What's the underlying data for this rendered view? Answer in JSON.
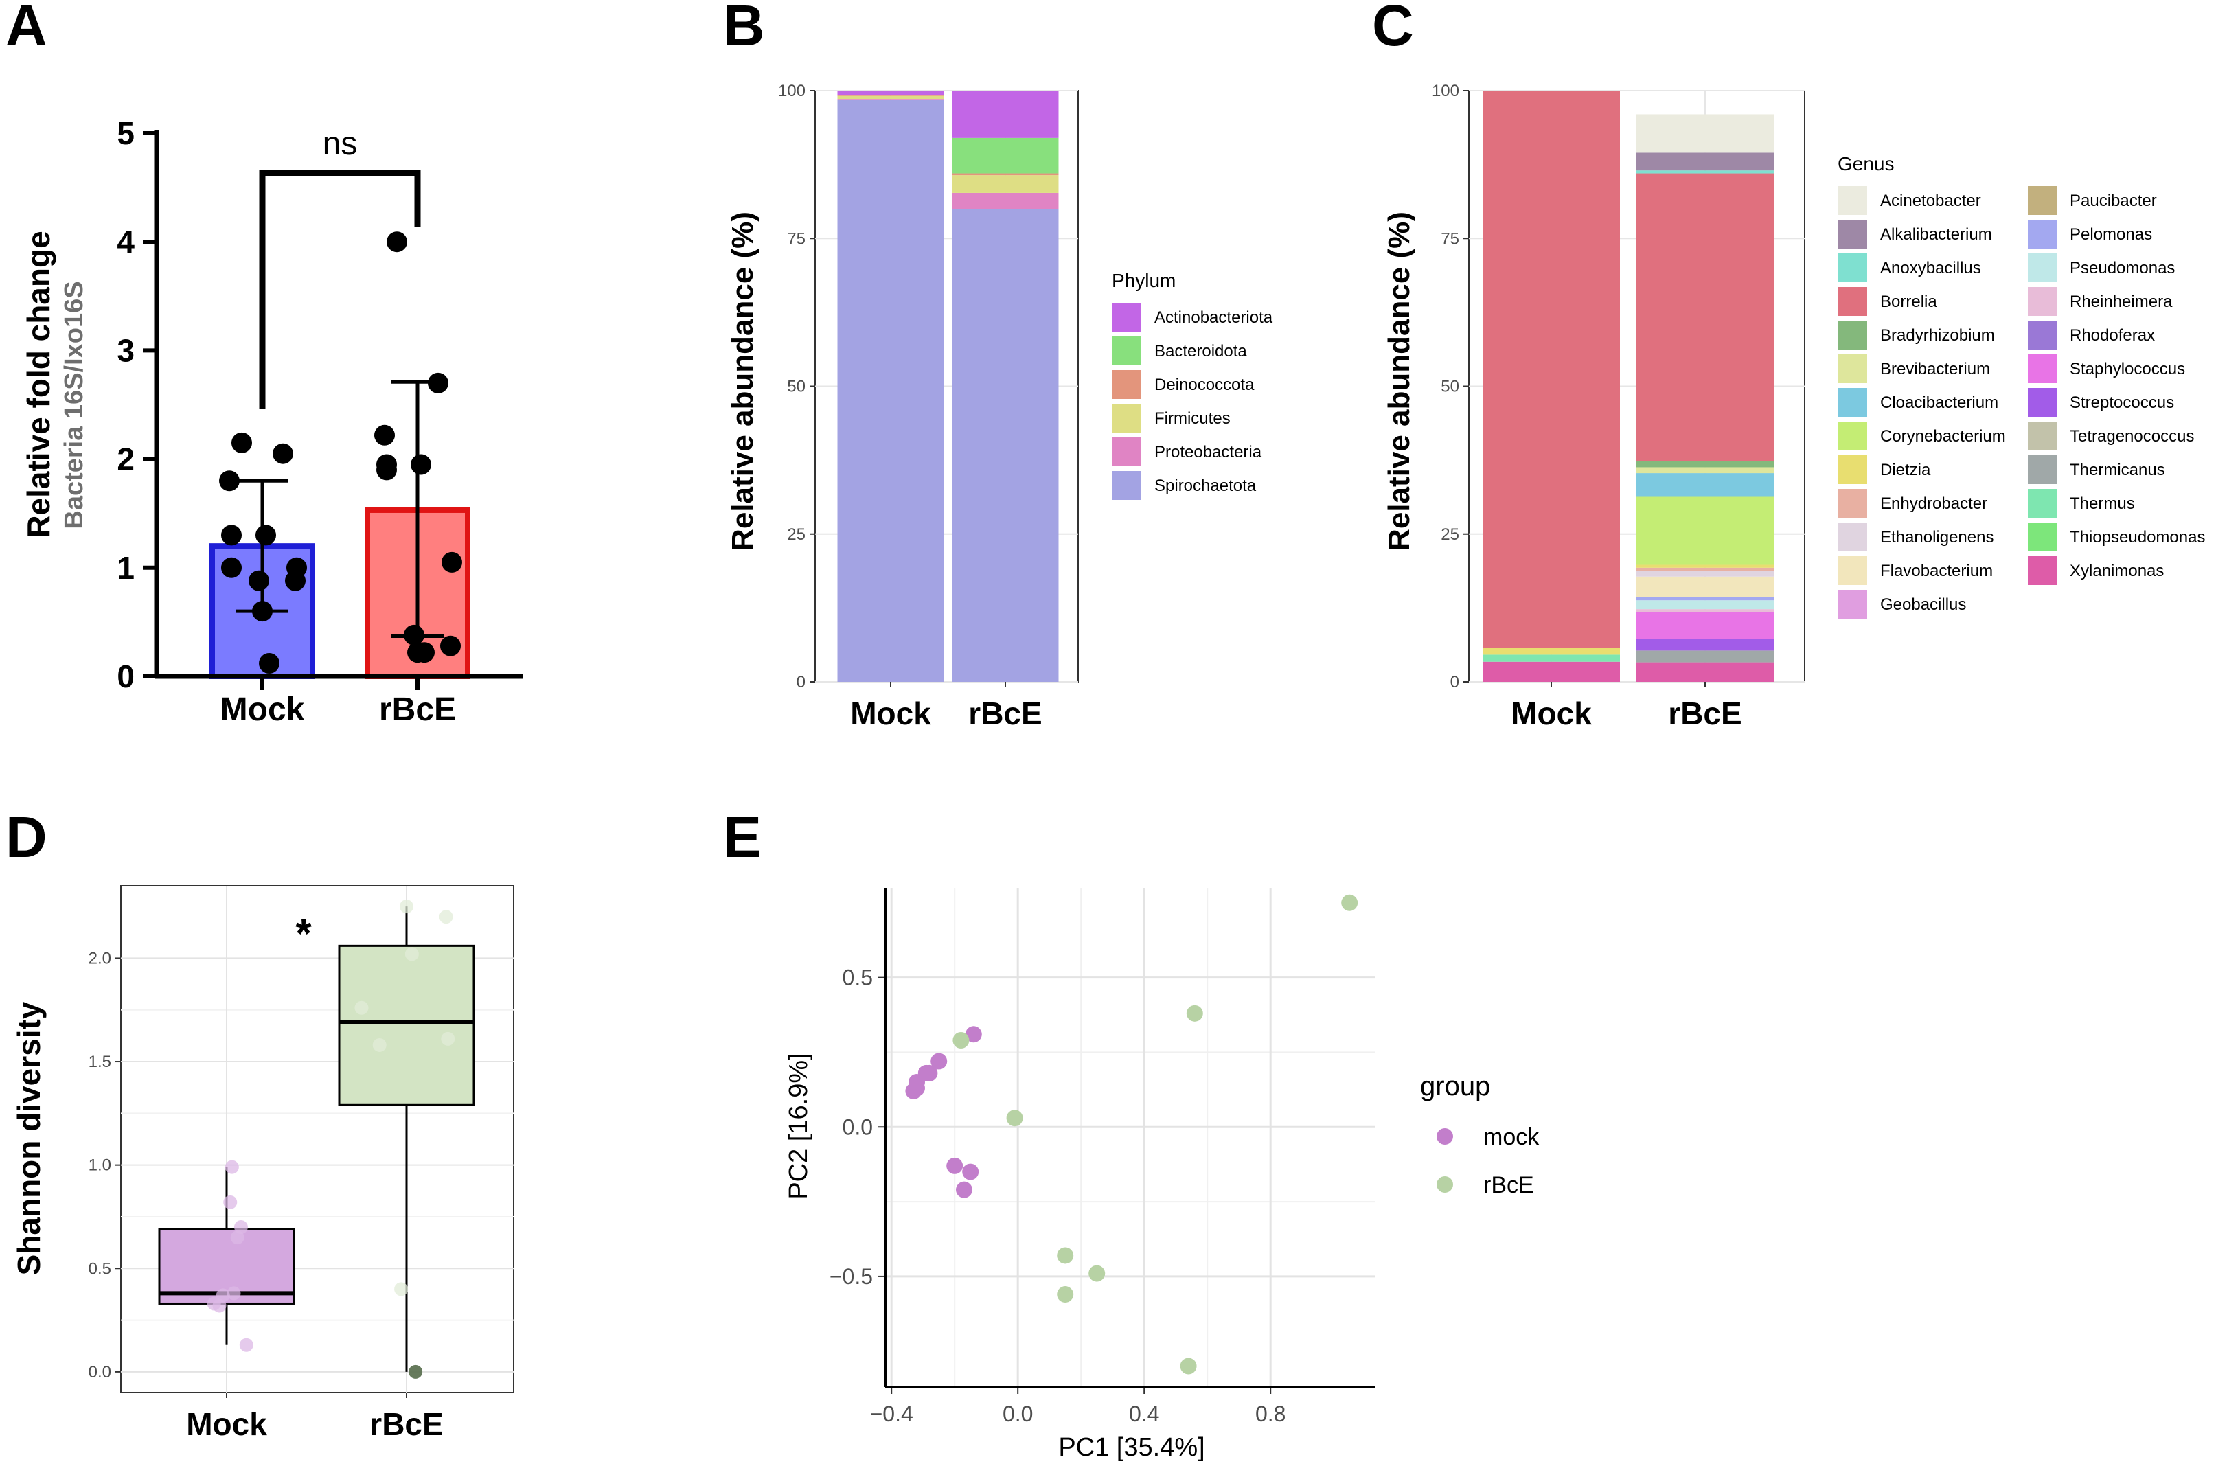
{
  "panel_letters": {
    "a": "A",
    "b": "B",
    "c": "C",
    "d": "D",
    "e": "E"
  },
  "chart_data": [
    {
      "panel": "A",
      "type": "bar",
      "categories": [
        "Mock",
        "rBcE"
      ],
      "ylabel": "Relative fold change",
      "ylabel_sub": "Bacteria 16S/Ixo16S",
      "ylim": [
        0,
        5
      ],
      "yticks": [
        0,
        1,
        2,
        3,
        4,
        5
      ],
      "means": [
        1.2,
        1.53
      ],
      "sd_lower": [
        0.6,
        0.37
      ],
      "sd_upper": [
        1.8,
        2.71
      ],
      "bar_colors": [
        "#7b7bff",
        "#ff7f7f"
      ],
      "edge_colors": [
        "#1f1fd6",
        "#e01414"
      ],
      "points": [
        [
          2.15,
          2.05,
          1.8,
          1.3,
          1.3,
          1.0,
          1.0,
          0.88,
          0.88,
          0.6,
          0.12
        ],
        [
          4.0,
          2.7,
          2.22,
          1.95,
          1.95,
          1.9,
          1.05,
          0.38,
          0.28,
          0.22,
          0.22
        ]
      ],
      "significance": "ns"
    },
    {
      "panel": "B",
      "type": "bar",
      "stacked": true,
      "categories": [
        "Mock",
        "rBcE"
      ],
      "ylabel": "Relative abundance (%)",
      "ylim": [
        0,
        100
      ],
      "yticks": [
        0,
        25,
        50,
        75,
        100
      ],
      "legend_title": "Phylum",
      "series": [
        {
          "name": "Actinobacteriota",
          "color": "#c266e6",
          "values": [
            0.7,
            8
          ]
        },
        {
          "name": "Bacteroidota",
          "color": "#88e07d",
          "values": [
            0.1,
            6
          ]
        },
        {
          "name": "Deinococcota",
          "color": "#e3957c",
          "values": [
            0.1,
            0.3
          ]
        },
        {
          "name": "Firmicutes",
          "color": "#dede84",
          "values": [
            0.5,
            3
          ]
        },
        {
          "name": "Proteobacteria",
          "color": "#e084c4",
          "values": [
            0.1,
            2.7
          ]
        },
        {
          "name": "Spirochaetota",
          "color": "#a3a3e3",
          "values": [
            98.5,
            80
          ]
        }
      ]
    },
    {
      "panel": "C",
      "type": "bar",
      "stacked": true,
      "categories": [
        "Mock",
        "rBcE"
      ],
      "ylabel": "Relative abundance (%)",
      "ylim": [
        0,
        100
      ],
      "yticks": [
        0,
        25,
        50,
        75,
        100
      ],
      "legend_title": "Genus",
      "series": [
        {
          "name": "Acinetobacter",
          "color": "#ebebdf",
          "values": [
            0,
            6.5
          ]
        },
        {
          "name": "Alkalibacterium",
          "color": "#9e88a6",
          "values": [
            0,
            3
          ]
        },
        {
          "name": "Anoxybacillus",
          "color": "#7fe0d0",
          "values": [
            0,
            0.5
          ]
        },
        {
          "name": "Borrelia",
          "color": "#e0707e",
          "values": [
            94.3,
            48.7
          ]
        },
        {
          "name": "Bradyrhizobium",
          "color": "#84b87c",
          "values": [
            0,
            1
          ]
        },
        {
          "name": "Brevibacterium",
          "color": "#dee69c",
          "values": [
            0,
            1
          ]
        },
        {
          "name": "Cloacibacterium",
          "color": "#7cc9e0",
          "values": [
            0,
            4
          ]
        },
        {
          "name": "Corynebacterium",
          "color": "#c4ed74",
          "values": [
            0,
            11.5
          ]
        },
        {
          "name": "Dietzia",
          "color": "#e8de70",
          "values": [
            1.1,
            0.5
          ]
        },
        {
          "name": "Enhydrobacter",
          "color": "#e8b0a2",
          "values": [
            0,
            0.5
          ]
        },
        {
          "name": "Ethanoligenens",
          "color": "#e0d4e0",
          "values": [
            0,
            1
          ]
        },
        {
          "name": "Flavobacterium",
          "color": "#f2e6bc",
          "values": [
            0,
            3.5
          ]
        },
        {
          "name": "Geobacillus",
          "color": "#e09ee0",
          "values": [
            0,
            0
          ]
        },
        {
          "name": "Paucibacter",
          "color": "#c2b07e",
          "values": [
            0,
            0
          ]
        },
        {
          "name": "Pelomonas",
          "color": "#a3a8f0",
          "values": [
            0,
            0.5
          ]
        },
        {
          "name": "Pseudomonas",
          "color": "#bfe8e8",
          "values": [
            0,
            1.5
          ]
        },
        {
          "name": "Rheinheimera",
          "color": "#e8bcd8",
          "values": [
            0,
            0.5
          ]
        },
        {
          "name": "Rhodoferax",
          "color": "#9a78d6",
          "values": [
            0,
            0
          ]
        },
        {
          "name": "Staphylococcus",
          "color": "#e874e6",
          "values": [
            0,
            4.5
          ]
        },
        {
          "name": "Streptococcus",
          "color": "#a25ce8",
          "values": [
            0,
            2
          ]
        },
        {
          "name": "Tetragenococcus",
          "color": "#c2c2aa",
          "values": [
            0,
            0
          ]
        },
        {
          "name": "Thermicanus",
          "color": "#a0a8a8",
          "values": [
            0,
            2
          ]
        },
        {
          "name": "Thermus",
          "color": "#7ee6b0",
          "values": [
            1.2,
            0
          ]
        },
        {
          "name": "Thiopseudomonas",
          "color": "#7de67b",
          "values": [
            0,
            0
          ]
        },
        {
          "name": "Xylanimonas",
          "color": "#de5ca8",
          "values": [
            3.4,
            3.3
          ]
        }
      ]
    },
    {
      "panel": "D",
      "type": "box",
      "categories": [
        "Mock",
        "rBcE"
      ],
      "ylabel": "Shannon diversity",
      "ylim": [
        -0.1,
        2.35
      ],
      "yticks": [
        0.0,
        0.5,
        1.0,
        1.5,
        2.0
      ],
      "ytick_labels": [
        "0.0",
        "0.5",
        "1.0",
        "1.5",
        "2.0"
      ],
      "box_colors": [
        "#d4a8df",
        "#d3e4c4"
      ],
      "point_colors": [
        "#dcb8e6",
        "#e2ecd8"
      ],
      "boxes": [
        {
          "whisker_low": 0.13,
          "q1": 0.33,
          "median": 0.38,
          "q3": 0.69,
          "whisker_high": 0.99
        },
        {
          "whisker_low": 0.0,
          "q1": 1.29,
          "median": 1.69,
          "q3": 2.06,
          "whisker_high": 2.25
        }
      ],
      "points": [
        [
          [
            0.93,
            0.33
          ],
          [
            0.96,
            0.32
          ],
          [
            0.98,
            0.37
          ],
          [
            1.02,
            0.82
          ],
          [
            1.03,
            0.99
          ],
          [
            1.04,
            0.38
          ],
          [
            1.06,
            0.65
          ],
          [
            1.08,
            0.7
          ],
          [
            1.11,
            0.13
          ]
        ],
        [
          [
            1.75,
            1.76
          ],
          [
            1.85,
            1.58
          ],
          [
            1.97,
            0.4
          ],
          [
            2.0,
            2.25
          ],
          [
            2.03,
            2.02
          ],
          [
            2.05,
            0.0
          ],
          [
            2.22,
            2.2
          ],
          [
            2.23,
            1.61
          ]
        ]
      ],
      "significance": "*"
    },
    {
      "panel": "E",
      "type": "scatter",
      "xlabel": "PC1 [35.4%]",
      "ylabel": "PC2 [16.9%]",
      "xlim": [
        -0.42,
        1.13
      ],
      "ylim": [
        -0.87,
        0.8
      ],
      "xticks": [
        -0.4,
        0.0,
        0.4,
        0.8
      ],
      "xtick_labels": [
        "−0.4",
        "0.0",
        "0.4",
        "0.8"
      ],
      "yticks": [
        -0.5,
        0.0,
        0.5
      ],
      "ytick_labels": [
        "−0.5",
        "0.0",
        "0.5"
      ],
      "legend_title": "group",
      "series": [
        {
          "name": "mock",
          "color": "#c27ecb",
          "points": [
            [
              -0.33,
              0.12
            ],
            [
              -0.32,
              0.15
            ],
            [
              -0.32,
              0.13
            ],
            [
              -0.29,
              0.18
            ],
            [
              -0.28,
              0.18
            ],
            [
              -0.25,
              0.22
            ],
            [
              -0.2,
              -0.13
            ],
            [
              -0.14,
              0.31
            ],
            [
              -0.17,
              -0.21
            ],
            [
              -0.15,
              -0.15
            ]
          ]
        },
        {
          "name": "rBcE",
          "color": "#b7d2a4",
          "points": [
            [
              -0.18,
              0.29
            ],
            [
              -0.01,
              0.03
            ],
            [
              0.15,
              -0.43
            ],
            [
              0.15,
              -0.56
            ],
            [
              0.25,
              -0.49
            ],
            [
              0.56,
              0.38
            ],
            [
              0.54,
              -0.8
            ],
            [
              1.05,
              0.75
            ]
          ]
        }
      ]
    }
  ]
}
